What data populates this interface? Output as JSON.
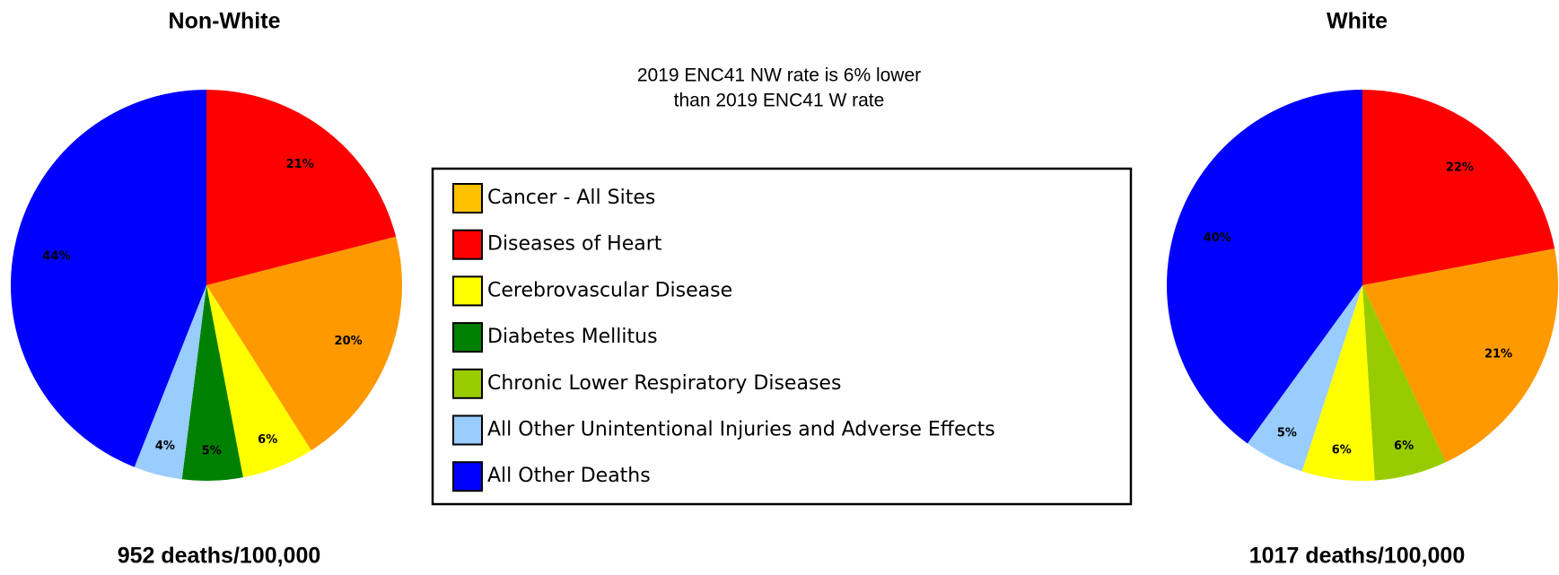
{
  "chart_data": [
    {
      "type": "pie",
      "title": "Non-White",
      "caption": "952 deaths/100,000",
      "categories": [
        "Diseases of Heart",
        "Cancer - All Sites",
        "Cerebrovascular Disease",
        "Diabetes Mellitus",
        "All Other Unintentional Injuries and Adverse Effects",
        "All Other Deaths"
      ],
      "values": [
        21,
        20,
        6,
        5,
        4,
        44
      ],
      "value_labels": [
        "21%",
        "20%",
        "6%",
        "5%",
        "4%",
        "44%"
      ],
      "colors": [
        "#ff0000",
        "#ff9900",
        "#ffff00",
        "#008000",
        "#99ccff",
        "#0000ff"
      ]
    },
    {
      "type": "pie",
      "title": "White",
      "caption": "1017 deaths/100,000",
      "categories": [
        "Diseases of Heart",
        "Cancer - All Sites",
        "Chronic Lower Respiratory Diseases",
        "Cerebrovascular Disease",
        "All Other Unintentional Injuries and Adverse Effects",
        "All Other Deaths"
      ],
      "values": [
        22,
        21,
        6,
        6,
        5,
        40
      ],
      "value_labels": [
        "22%",
        "21%",
        "6%",
        "6%",
        "5%",
        "40%"
      ],
      "colors": [
        "#ff0000",
        "#ff9900",
        "#99cc00",
        "#ffff00",
        "#99ccff",
        "#0000ff"
      ]
    }
  ],
  "note": [
    "2019 ENC41 NW rate is 6% lower",
    "than 2019 ENC41 W rate"
  ],
  "legend": [
    {
      "name": "Cancer - All Sites",
      "color": "#ffc000"
    },
    {
      "name": "Diseases of Heart",
      "color": "#ff0000"
    },
    {
      "name": "Cerebrovascular Disease",
      "color": "#ffff00"
    },
    {
      "name": "Diabetes Mellitus",
      "color": "#008000"
    },
    {
      "name": "Chronic Lower Respiratory Diseases",
      "color": "#99cc00"
    },
    {
      "name": "All Other Unintentional Injuries and Adverse Effects",
      "color": "#99ccff"
    },
    {
      "name": "All Other Deaths",
      "color": "#0000ff"
    }
  ]
}
